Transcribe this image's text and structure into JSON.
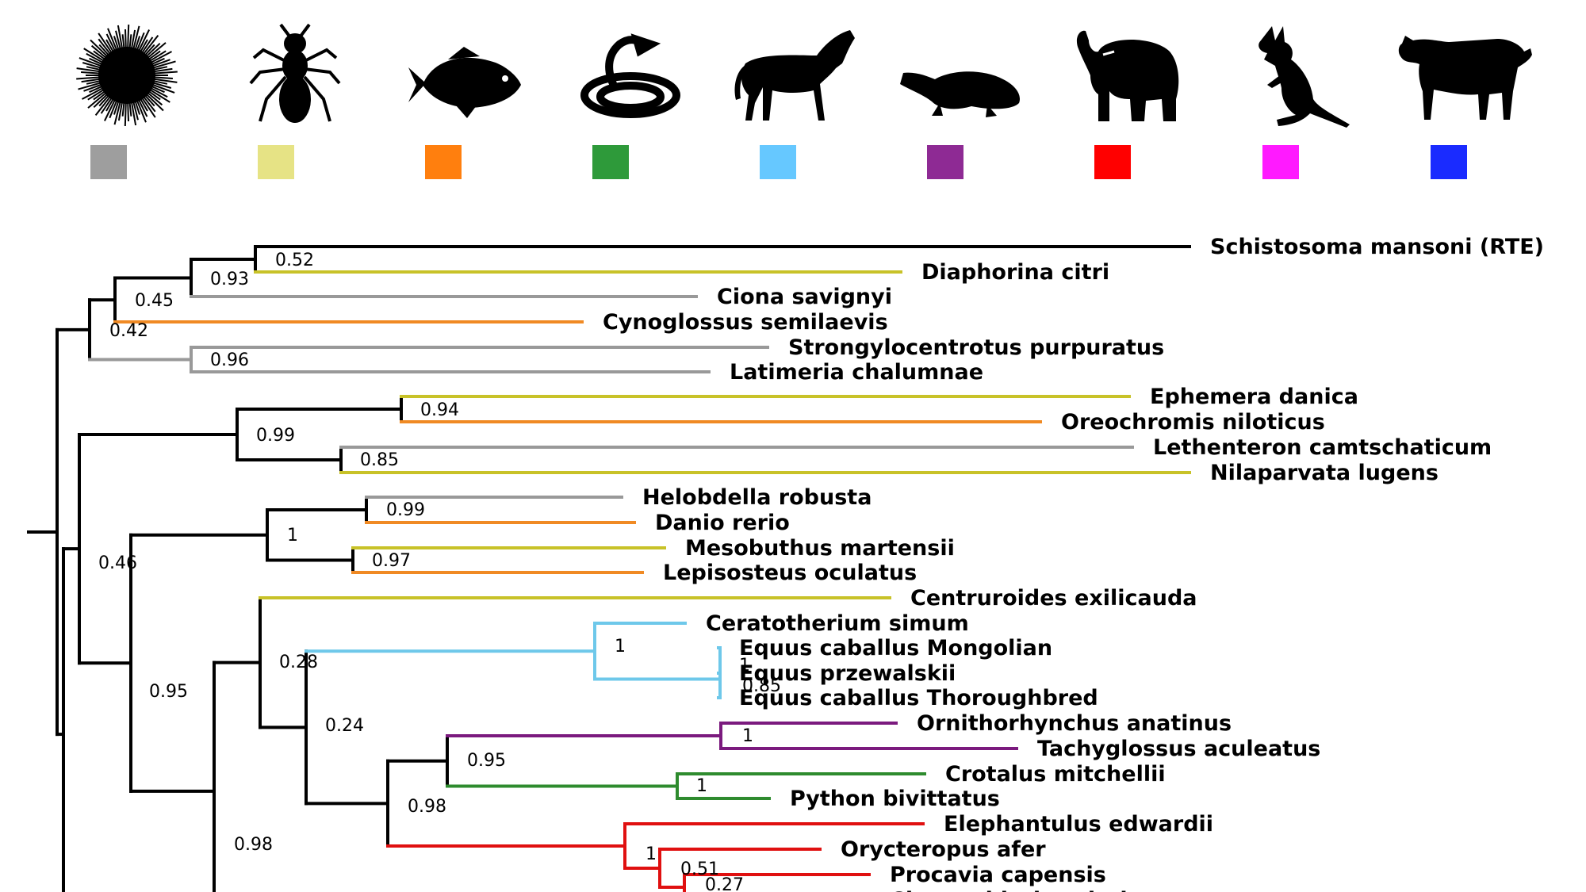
{
  "colors": {
    "root": "#000000",
    "schistosoma": "#000000",
    "other": "#999999",
    "arthropod": "#c8c228",
    "fish": "#f08a24",
    "reptile": "#2e8b2e",
    "perissodactyl": "#6ec8ea",
    "monotreme": "#7b1a7e",
    "afrotheria": "#e01010"
  },
  "legend": [
    {
      "icon": "sea-urchin-icon",
      "color": "#9e9e9e"
    },
    {
      "icon": "ant-icon",
      "color": "#e6e385"
    },
    {
      "icon": "fish-icon",
      "color": "#ff7f0e"
    },
    {
      "icon": "snake-icon",
      "color": "#2e9a3a"
    },
    {
      "icon": "horse-icon",
      "color": "#66c8ff"
    },
    {
      "icon": "platypus-icon",
      "color": "#8e2a94"
    },
    {
      "icon": "elephant-icon",
      "color": "#ff0000"
    },
    {
      "icon": "kangaroo-icon",
      "color": "#ff1aff"
    },
    {
      "icon": "cow-icon",
      "color": "#1a2bff"
    }
  ],
  "taxa": [
    {
      "name": "Schistosoma mansoni (RTE)",
      "group": "schistosoma"
    },
    {
      "name": "Diaphorina citri",
      "group": "arthropod"
    },
    {
      "name": "Ciona savignyi",
      "group": "other"
    },
    {
      "name": "Cynoglossus semilaevis",
      "group": "fish"
    },
    {
      "name": "Strongylocentrotus purpuratus",
      "group": "other"
    },
    {
      "name": "Latimeria chalumnae",
      "group": "other"
    },
    {
      "name": "Ephemera danica",
      "group": "arthropod"
    },
    {
      "name": "Oreochromis niloticus",
      "group": "fish"
    },
    {
      "name": "Lethenteron camtschaticum",
      "group": "other"
    },
    {
      "name": "Nilaparvata lugens",
      "group": "arthropod"
    },
    {
      "name": "Helobdella robusta",
      "group": "other"
    },
    {
      "name": "Danio rerio",
      "group": "fish"
    },
    {
      "name": "Mesobuthus martensii",
      "group": "arthropod"
    },
    {
      "name": "Lepisosteus oculatus",
      "group": "fish"
    },
    {
      "name": "Centruroides exilicauda",
      "group": "arthropod"
    },
    {
      "name": "Ceratotherium simum",
      "group": "perissodactyl"
    },
    {
      "name": "Equus caballus Mongolian",
      "group": "perissodactyl"
    },
    {
      "name": "Equus przewalskii",
      "group": "perissodactyl"
    },
    {
      "name": "Equus caballus Thoroughbred",
      "group": "perissodactyl"
    },
    {
      "name": "Ornithorhynchus anatinus",
      "group": "monotreme"
    },
    {
      "name": "Tachyglossus aculeatus",
      "group": "monotreme"
    },
    {
      "name": "Crotalus mitchellii",
      "group": "reptile"
    },
    {
      "name": "Python bivittatus",
      "group": "reptile"
    },
    {
      "name": "Elephantulus edwardii",
      "group": "afrotheria"
    },
    {
      "name": "Orycteropus afer",
      "group": "afrotheria"
    },
    {
      "name": "Procavia capensis",
      "group": "afrotheria"
    },
    {
      "name": "Chrysochloris asiatica",
      "group": "afrotheria"
    }
  ],
  "supports": [
    "0.52",
    "0.93",
    "0.45",
    "0.42",
    "0.96",
    "0.94",
    "0.99",
    "0.85",
    "0.99",
    "1",
    "0.97",
    "0.46",
    "0.95",
    "1",
    "1",
    "0.85",
    "0.28",
    "0.24",
    "1",
    "0.95",
    "1",
    "0.98",
    "1",
    "0.51",
    "0.27",
    "0.98"
  ]
}
